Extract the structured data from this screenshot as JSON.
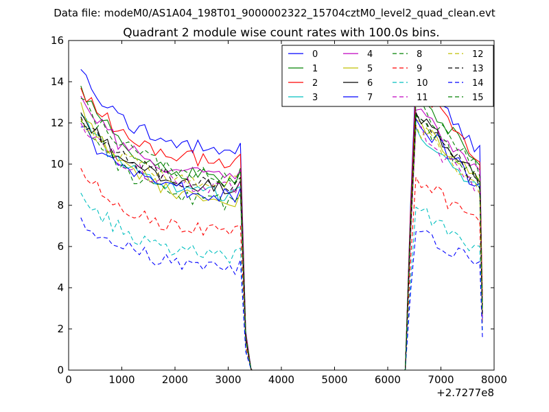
{
  "chart_data": {
    "type": "line",
    "suptitle": "Data file: modeM0/AS1A04_198T01_9000002322_15704cztM0_level2_quad_clean.evt",
    "title": "Quadrant 2 module wise count rates with 100.0s bins.",
    "xlabel": "",
    "ylabel": "",
    "x_offset_label": "+2.7277e8",
    "xlim": [
      0,
      8000
    ],
    "ylim": [
      0,
      16
    ],
    "xticks": [
      "0",
      "1000",
      "2000",
      "3000",
      "4000",
      "5000",
      "6000",
      "7000",
      "8000"
    ],
    "yticks": [
      "0",
      "2",
      "4",
      "6",
      "8",
      "10",
      "12",
      "14",
      "16"
    ],
    "legend_position": "top-right",
    "seg1_x": [
      230,
      330,
      430,
      530,
      630,
      730,
      830,
      930,
      1030,
      1130,
      1230,
      1330,
      1430,
      1530,
      1630,
      1730,
      1830,
      1930,
      2030,
      2130,
      2230,
      2330,
      2430,
      2530,
      2630,
      2730,
      2830,
      2930,
      3030,
      3130,
      3230
    ],
    "drop_x": [
      3330,
      3430
    ],
    "rise_x": [
      6330,
      6430
    ],
    "seg2_x": [
      6530,
      6630,
      6730,
      6830,
      6930,
      7030,
      7130,
      7230,
      7330,
      7430,
      7530,
      7630,
      7730
    ],
    "last_x": 7780,
    "gap_x_start": 3450,
    "gap_x_end": 6320,
    "series": [
      {
        "name": "0",
        "color": "#0000ff",
        "dash": false,
        "base": 14.6,
        "asym": 10.4,
        "second": 13.0,
        "end": 2.8
      },
      {
        "name": "1",
        "color": "#008000",
        "dash": false,
        "base": 13.8,
        "asym": 9.0,
        "second": 12.3,
        "end": 3.0
      },
      {
        "name": "2",
        "color": "#ff0000",
        "dash": false,
        "base": 13.7,
        "asym": 9.9,
        "second": 12.5,
        "end": 3.6
      },
      {
        "name": "3",
        "color": "#00bfbf",
        "dash": false,
        "base": 12.4,
        "asym": 8.3,
        "second": 10.6,
        "end": 2.7
      },
      {
        "name": "4",
        "color": "#bf00bf",
        "dash": false,
        "base": 13.3,
        "asym": 9.1,
        "second": 11.6,
        "end": 2.9
      },
      {
        "name": "5",
        "color": "#bfbf00",
        "dash": false,
        "base": 13.0,
        "asym": 7.9,
        "second": 11.1,
        "end": 2.6
      },
      {
        "name": "6",
        "color": "#000000",
        "dash": false,
        "base": 12.5,
        "asym": 8.6,
        "second": 11.3,
        "end": 2.8
      },
      {
        "name": "7",
        "color": "#0000ff",
        "dash": false,
        "base": 11.8,
        "asym": 8.3,
        "second": 10.8,
        "end": 2.5
      },
      {
        "name": "8",
        "color": "#008000",
        "dash": true,
        "base": 12.1,
        "asym": 7.9,
        "second": 11.0,
        "end": 2.7
      },
      {
        "name": "9",
        "color": "#ff0000",
        "dash": true,
        "base": 9.8,
        "asym": 6.5,
        "second": 8.6,
        "end": 2.2
      },
      {
        "name": "10",
        "color": "#00bfbf",
        "dash": true,
        "base": 8.6,
        "asym": 5.4,
        "second": 7.0,
        "end": 1.9
      },
      {
        "name": "11",
        "color": "#bf00bf",
        "dash": true,
        "base": 12.0,
        "asym": 8.7,
        "second": 10.5,
        "end": 2.6
      },
      {
        "name": "12",
        "color": "#bfbf00",
        "dash": true,
        "base": 12.2,
        "asym": 8.9,
        "second": 10.8,
        "end": 2.7
      },
      {
        "name": "13",
        "color": "#000000",
        "dash": true,
        "base": 12.3,
        "asym": 8.8,
        "second": 11.0,
        "end": 2.6
      },
      {
        "name": "14",
        "color": "#0000ff",
        "dash": true,
        "base": 7.4,
        "asym": 4.9,
        "second": 6.1,
        "end": 1.6
      },
      {
        "name": "15",
        "color": "#008000",
        "dash": true,
        "base": 13.2,
        "asym": 9.2,
        "second": 11.7,
        "end": 2.9
      }
    ]
  }
}
